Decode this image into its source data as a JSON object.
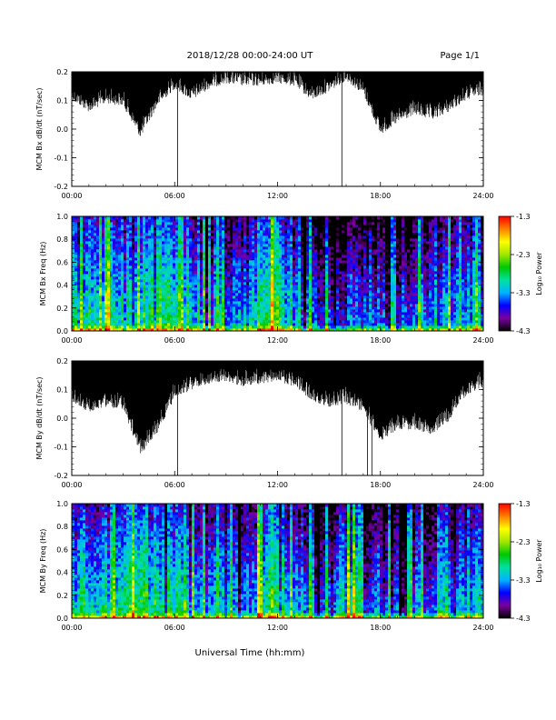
{
  "header": {
    "title": "2018/12/28  00:00-24:00 UT",
    "page": "Page 1/1"
  },
  "x_axis_title": "Universal Time (hh:mm)",
  "colorbar": {
    "label": "Log₁₀ Power",
    "ticks": [
      "-1.3",
      "-2.3",
      "-3.3",
      "-4.3"
    ],
    "range": [
      -4.3,
      -1.3
    ],
    "colors": [
      "#000000",
      "#7a00a0",
      "#0000ff",
      "#00b4ff",
      "#00e0a0",
      "#00c800",
      "#a0e600",
      "#ffff00",
      "#ff8000",
      "#ff0000"
    ]
  },
  "chart_data": [
    {
      "type": "line",
      "title": "",
      "ylabel": "MCM Bx dB/dt (nT/sec)",
      "xlabel": "",
      "xlim": [
        "00:00",
        "24:00"
      ],
      "x_ticks": [
        "00:00",
        "06:00",
        "12:00",
        "18:00",
        "24:00"
      ],
      "ylim": [
        -0.2,
        0.2
      ],
      "y_ticks": [
        "0.2",
        "0.1",
        "0.0",
        "-0.1",
        "-0.2"
      ],
      "grid": false,
      "description": "envelope of min dB/dt per hour",
      "series": [
        {
          "x": [
            "00:00",
            "01:00",
            "02:00",
            "03:00",
            "04:00",
            "05:00",
            "06:00",
            "07:00",
            "08:00",
            "09:00",
            "10:00",
            "11:00",
            "12:00",
            "13:00",
            "14:00",
            "15:00",
            "16:00",
            "17:00",
            "18:00",
            "19:00",
            "20:00",
            "21:00",
            "22:00",
            "23:00",
            "24:00"
          ],
          "values": [
            0.1,
            0.06,
            0.09,
            0.08,
            -0.03,
            0.08,
            0.14,
            0.1,
            0.14,
            0.16,
            0.15,
            0.15,
            0.16,
            0.15,
            0.1,
            0.13,
            0.17,
            0.12,
            -0.02,
            0.02,
            0.05,
            0.03,
            0.06,
            0.1,
            0.12
          ]
        }
      ],
      "spikes": [
        {
          "x": "06:10",
          "value": -0.2
        },
        {
          "x": "15:45",
          "value": -0.2
        }
      ]
    },
    {
      "type": "heatmap",
      "title": "",
      "ylabel": "MCM Bx Freq (Hz)",
      "xlabel": "",
      "xlim": [
        "00:00",
        "24:00"
      ],
      "x_ticks": [
        "00:00",
        "06:00",
        "12:00",
        "18:00",
        "24:00"
      ],
      "ylim": [
        0.0,
        1.0
      ],
      "y_ticks": [
        "1.0",
        "0.8",
        "0.6",
        "0.4",
        "0.2",
        "0.0"
      ],
      "z_range": [
        -4.3,
        -1.3
      ],
      "description": "log10 power spectrogram"
    },
    {
      "type": "line",
      "title": "",
      "ylabel": "MCM By dB/dt (nT/sec)",
      "xlabel": "",
      "xlim": [
        "00:00",
        "24:00"
      ],
      "x_ticks": [
        "00:00",
        "06:00",
        "12:00",
        "18:00",
        "24:00"
      ],
      "ylim": [
        -0.2,
        0.2
      ],
      "y_ticks": [
        "0.2",
        "0.1",
        "0.0",
        "-0.1",
        "-0.2"
      ],
      "grid": false,
      "description": "envelope of min dB/dt per hour",
      "series": [
        {
          "x": [
            "00:00",
            "01:00",
            "02:00",
            "03:00",
            "04:00",
            "05:00",
            "06:00",
            "07:00",
            "08:00",
            "09:00",
            "10:00",
            "11:00",
            "12:00",
            "13:00",
            "14:00",
            "15:00",
            "16:00",
            "17:00",
            "18:00",
            "19:00",
            "20:00",
            "21:00",
            "22:00",
            "23:00",
            "24:00"
          ],
          "values": [
            0.06,
            0.02,
            0.04,
            0.03,
            -0.13,
            -0.05,
            0.07,
            0.1,
            0.12,
            0.13,
            0.11,
            0.12,
            0.13,
            0.11,
            0.06,
            0.04,
            0.05,
            0.02,
            -0.08,
            -0.04,
            -0.04,
            -0.06,
            -0.01,
            0.08,
            0.11
          ]
        }
      ],
      "spikes": [
        {
          "x": "06:10",
          "value": -0.2
        },
        {
          "x": "15:45",
          "value": -0.2
        },
        {
          "x": "17:15",
          "value": -0.2
        },
        {
          "x": "17:30",
          "value": -0.2
        }
      ]
    },
    {
      "type": "heatmap",
      "title": "",
      "ylabel": "MCM By Freq (Hz)",
      "xlabel": "",
      "xlim": [
        "00:00",
        "24:00"
      ],
      "x_ticks": [
        "00:00",
        "06:00",
        "12:00",
        "18:00",
        "24:00"
      ],
      "ylim": [
        0.0,
        1.0
      ],
      "y_ticks": [
        "1.0",
        "0.8",
        "0.6",
        "0.4",
        "0.2",
        "0.0"
      ],
      "z_range": [
        -4.3,
        -1.3
      ],
      "description": "log10 power spectrogram"
    }
  ]
}
